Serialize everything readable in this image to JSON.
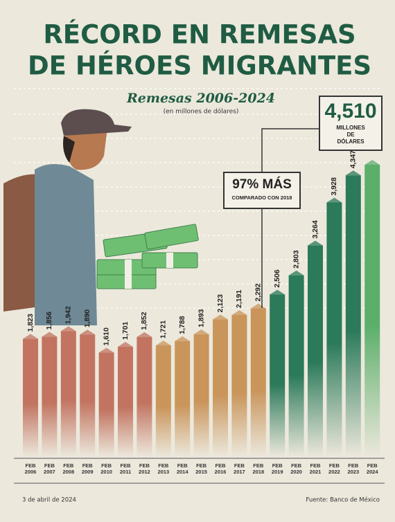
{
  "chart_data": {
    "type": "bar",
    "title": [
      "RÉCORD EN REMESAS",
      "DE HÉROES MIGRANTES"
    ],
    "subtitle": "Remesas 2006-2024",
    "unit_note": "(en millones de dólares)",
    "categories": [
      "FEB 2006",
      "FEB 2007",
      "FEB 2008",
      "FEB 2009",
      "FEB 2010",
      "FEB 2011",
      "FEB 2012",
      "FEB 2013",
      "FEB 2014",
      "FEB 2015",
      "FEB 2016",
      "FEB 2017",
      "FEB 2018",
      "FEB 2019",
      "FEB 2020",
      "FEB 2021",
      "FEB 2022",
      "FEB 2023",
      "FEB 2024"
    ],
    "values": [
      1823,
      1856,
      1942,
      1890,
      1610,
      1701,
      1852,
      1721,
      1788,
      1893,
      2123,
      2191,
      2292,
      2506,
      2803,
      3264,
      3928,
      4347,
      4510
    ],
    "value_labels": [
      "1,823",
      "1,856",
      "1,942",
      "1,890",
      "1,610",
      "1,701",
      "1,852",
      "1,721",
      "1,788",
      "1,893",
      "2,123",
      "2,191",
      "2,292",
      "2,506",
      "2,803",
      "3,264",
      "3,928",
      "4,347",
      "4,510"
    ],
    "colors": [
      "#c27461",
      "#c27461",
      "#c27461",
      "#c27461",
      "#c27461",
      "#c27461",
      "#c27461",
      "#c9955b",
      "#c9955b",
      "#c9955b",
      "#c9955b",
      "#c9955b",
      "#c9955b",
      "#2b7a5a",
      "#2b7a5a",
      "#2b7a5a",
      "#2b7a5a",
      "#2b7a5a",
      "#5caf6b"
    ],
    "callouts": [
      {
        "title": "97% MÁS",
        "text": "COMPARADO CON 2018"
      },
      {
        "text": "MILLONES DE DÓLARES"
      }
    ],
    "footer": {
      "date": "3 de abril de 2024",
      "source": "Fuente: Banco de México"
    }
  }
}
